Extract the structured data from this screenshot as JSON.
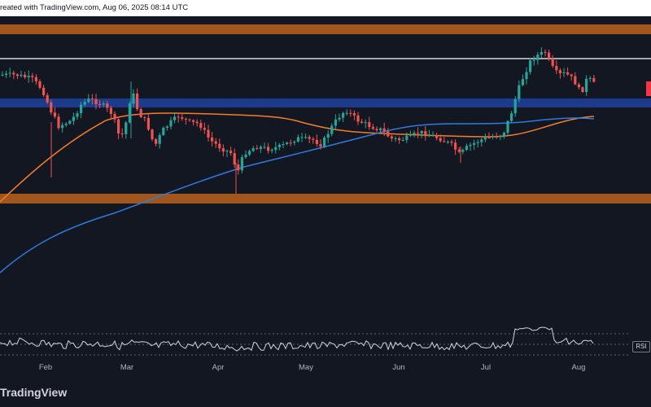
{
  "header": {
    "published_text": "reated with TradingView.com, Aug 06, 2025 08:14 UTC"
  },
  "xaxis": {
    "labels": [
      "Feb",
      "Mar",
      "Apr",
      "May",
      "Jun",
      "Jul",
      "Aug"
    ]
  },
  "indicator": {
    "rsi_label": "RSI"
  },
  "brand": {
    "name": "TradingView"
  },
  "colors": {
    "background": "#131722",
    "candle_up": "#26a69a",
    "candle_down": "#ef5350",
    "ma_fast": "#f77c2a",
    "ma_slow": "#2e7be0",
    "supply_zone": "#a0561c",
    "demand_zone": "#1e3a8a",
    "resistance_line": "#ffffff"
  },
  "chart_data": {
    "type": "candlestick",
    "xlabel": "",
    "ylabel": "",
    "x_ticks": [
      "Feb",
      "Mar",
      "Apr",
      "May",
      "Jun",
      "Jul",
      "Aug"
    ],
    "zones": [
      {
        "kind": "upper-orange-zone"
      },
      {
        "kind": "blue-zone"
      },
      {
        "kind": "lower-orange-zone"
      }
    ],
    "horizontal_lines": [
      {
        "kind": "white-resistance-line"
      }
    ],
    "indicators": [
      "moving-average-orange",
      "moving-average-blue",
      "RSI"
    ],
    "legend": "none",
    "grid": false
  }
}
